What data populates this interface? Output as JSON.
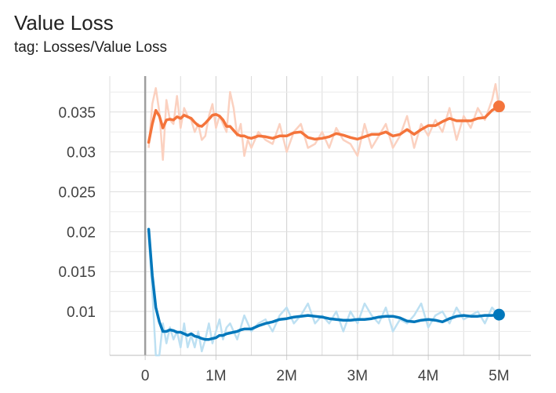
{
  "header": {
    "title": "Value Loss",
    "subtitle": "tag: Losses/Value Loss"
  },
  "chart_data": {
    "type": "line",
    "title": "Value Loss",
    "subtitle": "tag: Losses/Value Loss",
    "xlim": [
      -500000,
      5450000
    ],
    "ylim": [
      0.0045,
      0.0395
    ],
    "grid": true,
    "x_ticks": [
      {
        "value": 0,
        "label": "0"
      },
      {
        "value": 1000000,
        "label": "1M"
      },
      {
        "value": 2000000,
        "label": "2M"
      },
      {
        "value": 3000000,
        "label": "3M"
      },
      {
        "value": 4000000,
        "label": "4M"
      },
      {
        "value": 5000000,
        "label": "5M"
      }
    ],
    "x_minor_ticks": [
      -500000,
      500000,
      1500000,
      2500000,
      3500000,
      4500000
    ],
    "y_ticks": [
      {
        "value": 0.01,
        "label": "0.01"
      },
      {
        "value": 0.015,
        "label": "0.015"
      },
      {
        "value": 0.02,
        "label": "0.02"
      },
      {
        "value": 0.025,
        "label": "0.025"
      },
      {
        "value": 0.03,
        "label": "0.03"
      },
      {
        "value": 0.035,
        "label": "0.035"
      }
    ],
    "y_minor_ticks": [
      0.0075,
      0.0125,
      0.0175,
      0.0225,
      0.0275,
      0.0325,
      0.0375
    ],
    "series": [
      {
        "color": "#f4743b",
        "raw_color": "#fbd1c0",
        "raw_x": [
          50000,
          100000,
          150000,
          200000,
          250000,
          300000,
          350000,
          400000,
          450000,
          500000,
          550000,
          600000,
          650000,
          700000,
          750000,
          800000,
          850000,
          900000,
          950000,
          1000000,
          1050000,
          1100000,
          1150000,
          1200000,
          1250000,
          1300000,
          1350000,
          1400000,
          1450000,
          1500000,
          1600000,
          1700000,
          1800000,
          1900000,
          2000000,
          2100000,
          2200000,
          2300000,
          2400000,
          2500000,
          2600000,
          2700000,
          2800000,
          2900000,
          3000000,
          3100000,
          3200000,
          3300000,
          3400000,
          3500000,
          3600000,
          3700000,
          3800000,
          3900000,
          4000000,
          4100000,
          4200000,
          4300000,
          4400000,
          4500000,
          4600000,
          4700000,
          4800000,
          4900000,
          4950000,
          5000000
        ],
        "raw_y": [
          0.0305,
          0.036,
          0.038,
          0.035,
          0.029,
          0.0365,
          0.034,
          0.0335,
          0.037,
          0.033,
          0.0355,
          0.0345,
          0.034,
          0.0325,
          0.0335,
          0.0315,
          0.032,
          0.0345,
          0.036,
          0.033,
          0.0345,
          0.0335,
          0.0325,
          0.0375,
          0.0355,
          0.032,
          0.0335,
          0.0295,
          0.0315,
          0.0305,
          0.0325,
          0.0315,
          0.031,
          0.0335,
          0.03,
          0.0325,
          0.0335,
          0.0305,
          0.031,
          0.0325,
          0.0305,
          0.033,
          0.0315,
          0.031,
          0.0295,
          0.0335,
          0.0305,
          0.032,
          0.0335,
          0.0305,
          0.032,
          0.0345,
          0.0305,
          0.0335,
          0.032,
          0.034,
          0.0325,
          0.0355,
          0.0315,
          0.0345,
          0.033,
          0.0355,
          0.034,
          0.0365,
          0.0385,
          0.0355
        ],
        "smooth_x": [
          50000,
          100000,
          150000,
          200000,
          250000,
          300000,
          350000,
          400000,
          450000,
          500000,
          550000,
          600000,
          650000,
          700000,
          750000,
          800000,
          850000,
          900000,
          950000,
          1000000,
          1050000,
          1100000,
          1150000,
          1200000,
          1250000,
          1300000,
          1350000,
          1400000,
          1450000,
          1500000,
          1600000,
          1700000,
          1800000,
          1900000,
          2000000,
          2100000,
          2200000,
          2300000,
          2400000,
          2500000,
          2600000,
          2700000,
          2800000,
          2900000,
          3000000,
          3100000,
          3200000,
          3300000,
          3400000,
          3500000,
          3600000,
          3700000,
          3800000,
          3900000,
          4000000,
          4100000,
          4200000,
          4300000,
          4400000,
          4500000,
          4600000,
          4700000,
          4800000,
          4900000,
          5000000
        ],
        "smooth_y": [
          0.0312,
          0.0335,
          0.0352,
          0.0345,
          0.033,
          0.034,
          0.0341,
          0.034,
          0.0344,
          0.0342,
          0.0346,
          0.0344,
          0.0342,
          0.0337,
          0.0333,
          0.0332,
          0.0336,
          0.0341,
          0.0346,
          0.0347,
          0.0345,
          0.034,
          0.0332,
          0.0332,
          0.0327,
          0.0322,
          0.032,
          0.032,
          0.0318,
          0.0317,
          0.032,
          0.0319,
          0.0317,
          0.032,
          0.032,
          0.0324,
          0.0325,
          0.0318,
          0.0316,
          0.0317,
          0.0319,
          0.0323,
          0.0321,
          0.0318,
          0.0316,
          0.0319,
          0.0322,
          0.0322,
          0.0325,
          0.032,
          0.0322,
          0.0328,
          0.0322,
          0.0328,
          0.0333,
          0.0333,
          0.0338,
          0.0342,
          0.0339,
          0.0339,
          0.0339,
          0.0342,
          0.0343,
          0.0352,
          0.0357
        ]
      },
      {
        "color": "#0077bb",
        "raw_color": "#bde0f2",
        "raw_x": [
          50000,
          100000,
          150000,
          200000,
          250000,
          300000,
          350000,
          400000,
          450000,
          500000,
          550000,
          600000,
          650000,
          700000,
          750000,
          800000,
          850000,
          900000,
          950000,
          1000000,
          1050000,
          1100000,
          1150000,
          1200000,
          1250000,
          1300000,
          1350000,
          1400000,
          1450000,
          1500000,
          1600000,
          1700000,
          1800000,
          1900000,
          2000000,
          2100000,
          2200000,
          2300000,
          2400000,
          2500000,
          2600000,
          2700000,
          2800000,
          2900000,
          3000000,
          3100000,
          3200000,
          3300000,
          3400000,
          3500000,
          3600000,
          3700000,
          3800000,
          3900000,
          4000000,
          4100000,
          4200000,
          4300000,
          4400000,
          4500000,
          4600000,
          4700000,
          4800000,
          4900000,
          5000000
        ],
        "raw_y": [
          0.0195,
          0.0125,
          0.0045,
          0.0045,
          0.0085,
          0.006,
          0.008,
          0.0065,
          0.0075,
          0.0055,
          0.0085,
          0.0055,
          0.007,
          0.0055,
          0.0075,
          0.005,
          0.0065,
          0.0085,
          0.006,
          0.0075,
          0.009,
          0.0065,
          0.008,
          0.0085,
          0.0075,
          0.0065,
          0.008,
          0.0095,
          0.0085,
          0.0075,
          0.0085,
          0.009,
          0.0075,
          0.0095,
          0.0105,
          0.0085,
          0.0095,
          0.011,
          0.0085,
          0.0095,
          0.0085,
          0.01,
          0.0075,
          0.01,
          0.0085,
          0.011,
          0.0095,
          0.0085,
          0.0105,
          0.0075,
          0.009,
          0.0085,
          0.0095,
          0.011,
          0.008,
          0.0095,
          0.01,
          0.0085,
          0.0105,
          0.009,
          0.0095,
          0.01,
          0.0085,
          0.0105,
          0.0095
        ],
        "smooth_x": [
          50000,
          100000,
          150000,
          200000,
          250000,
          300000,
          350000,
          400000,
          450000,
          500000,
          550000,
          600000,
          650000,
          700000,
          750000,
          800000,
          850000,
          900000,
          950000,
          1000000,
          1050000,
          1100000,
          1150000,
          1200000,
          1250000,
          1300000,
          1350000,
          1400000,
          1450000,
          1500000,
          1600000,
          1700000,
          1800000,
          1900000,
          2000000,
          2100000,
          2200000,
          2300000,
          2400000,
          2500000,
          2600000,
          2700000,
          2800000,
          2900000,
          3000000,
          3100000,
          3200000,
          3300000,
          3400000,
          3500000,
          3600000,
          3700000,
          3800000,
          3900000,
          4000000,
          4100000,
          4200000,
          4300000,
          4400000,
          4500000,
          4600000,
          4700000,
          4800000,
          4900000,
          5000000
        ],
        "smooth_y": [
          0.0203,
          0.0145,
          0.0105,
          0.0087,
          0.0075,
          0.0075,
          0.0077,
          0.0076,
          0.0074,
          0.0074,
          0.0072,
          0.007,
          0.0072,
          0.0069,
          0.0068,
          0.0066,
          0.0065,
          0.0065,
          0.0066,
          0.0067,
          0.007,
          0.007,
          0.0072,
          0.0073,
          0.0074,
          0.0075,
          0.0077,
          0.0078,
          0.0078,
          0.0078,
          0.0082,
          0.0085,
          0.0087,
          0.009,
          0.0091,
          0.0093,
          0.0094,
          0.0095,
          0.0094,
          0.0093,
          0.0091,
          0.009,
          0.0089,
          0.0089,
          0.009,
          0.009,
          0.0091,
          0.0093,
          0.0094,
          0.0094,
          0.0092,
          0.0088,
          0.0087,
          0.0089,
          0.009,
          0.0089,
          0.0087,
          0.0091,
          0.0094,
          0.0095,
          0.0094,
          0.0094,
          0.0095,
          0.0095,
          0.0096
        ]
      }
    ]
  }
}
